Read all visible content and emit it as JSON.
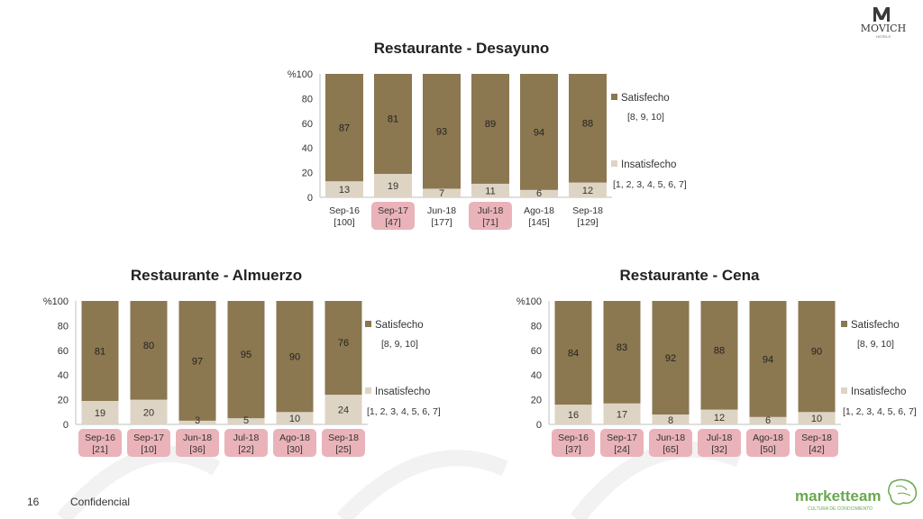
{
  "page": {
    "number": "16",
    "footer": "Confidencial"
  },
  "brand": {
    "top_logo": "MOVICH",
    "top_logo_sub": "HOTELS",
    "bottom_logo": "marketteam",
    "bottom_logo_sub": "CULTURA DE CONOCIMIENTO"
  },
  "colors": {
    "satisfecho": "#8b7750",
    "insatisfecho": "#ddd4c4",
    "highlight": "#e9b3b9",
    "axis": "#bfbfbf"
  },
  "chart_data": [
    {
      "type": "bar",
      "stacked": true,
      "title": "Restaurante - Desayuno",
      "y_unit": "%",
      "ylim": [
        0,
        100
      ],
      "yticks": [
        "0",
        "20",
        "40",
        "60",
        "80",
        "100"
      ],
      "categories": [
        "Sep-16",
        "Sep-17",
        "Jun-18",
        "Jul-18",
        "Ago-18",
        "Sep-18"
      ],
      "counts": [
        "[100]",
        "[47]",
        "[177]",
        "[71]",
        "[145]",
        "[129]"
      ],
      "highlighted": [
        false,
        true,
        false,
        true,
        false,
        false
      ],
      "series": [
        {
          "name": "Insatisfecho",
          "range": "[1, 2, 3, 4, 5, 6, 7]",
          "values": [
            13,
            19,
            7,
            11,
            6,
            12
          ]
        },
        {
          "name": "Satisfecho",
          "range": "[8, 9, 10]",
          "values": [
            87,
            81,
            93,
            89,
            94,
            88
          ]
        }
      ]
    },
    {
      "type": "bar",
      "stacked": true,
      "title": "Restaurante - Almuerzo",
      "y_unit": "%",
      "ylim": [
        0,
        100
      ],
      "yticks": [
        "0",
        "20",
        "40",
        "60",
        "80",
        "100"
      ],
      "categories": [
        "Sep-16",
        "Sep-17",
        "Jun-18",
        "Jul-18",
        "Ago-18",
        "Sep-18"
      ],
      "counts": [
        "[21]",
        "[10]",
        "[36]",
        "[22]",
        "[30]",
        "[25]"
      ],
      "highlighted": [
        true,
        true,
        true,
        true,
        true,
        true
      ],
      "series": [
        {
          "name": "Insatisfecho",
          "range": "[1, 2, 3, 4, 5, 6, 7]",
          "values": [
            19,
            20,
            3,
            5,
            10,
            24
          ]
        },
        {
          "name": "Satisfecho",
          "range": "[8, 9, 10]",
          "values": [
            81,
            80,
            97,
            95,
            90,
            76
          ]
        }
      ]
    },
    {
      "type": "bar",
      "stacked": true,
      "title": "Restaurante - Cena",
      "y_unit": "%",
      "ylim": [
        0,
        100
      ],
      "yticks": [
        "0",
        "20",
        "40",
        "60",
        "80",
        "100"
      ],
      "categories": [
        "Sep-16",
        "Sep-17",
        "Jun-18",
        "Jul-18",
        "Ago-18",
        "Sep-18"
      ],
      "counts": [
        "[37]",
        "[24]",
        "[65]",
        "[32]",
        "[50]",
        "[42]"
      ],
      "highlighted": [
        true,
        true,
        true,
        true,
        true,
        true
      ],
      "series": [
        {
          "name": "Insatisfecho",
          "range": "[1, 2, 3, 4, 5, 6, 7]",
          "values": [
            16,
            17,
            8,
            12,
            6,
            10
          ]
        },
        {
          "name": "Satisfecho",
          "range": "[8, 9, 10]",
          "values": [
            84,
            83,
            92,
            88,
            94,
            90
          ]
        }
      ]
    }
  ]
}
